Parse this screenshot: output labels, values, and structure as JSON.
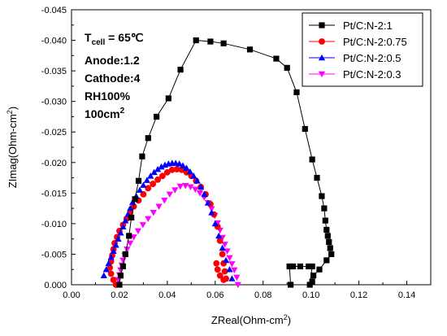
{
  "chart_data": {
    "type": "scatter",
    "xlabel": "ZReal(Ohm-cm",
    "xlabel_sup": "2",
    "xlabel_end": ")",
    "ylabel": "ZImag(Ohm-cm",
    "ylabel_sup": "2",
    "ylabel_end": ")",
    "xlim": [
      0.0,
      0.15
    ],
    "ylim": [
      0.0,
      -0.045
    ],
    "x_ticks": [
      "0.00",
      "0.02",
      "0.04",
      "0.06",
      "0.08",
      "0.10",
      "0.12",
      "0.14"
    ],
    "y_ticks": [
      "0.000",
      "-0.005",
      "-0.010",
      "-0.015",
      "-0.020",
      "-0.025",
      "-0.030",
      "-0.035",
      "-0.040",
      "-0.045"
    ],
    "grid": false,
    "legend_position": "top-right",
    "annotation": {
      "temp_prefix": "T",
      "temp_sub": "cell",
      "temp_value": " = 65℃",
      "anode": "Anode:1.2",
      "cathode": "Cathode:4",
      "rh": "RH100%",
      "area": "100cm",
      "area_sup": "2"
    },
    "series": [
      {
        "name": "Pt/C:N-2:1",
        "color": "#000000",
        "marker": "square",
        "line": true,
        "x": [
          0.0915,
          0.091,
          0.0925,
          0.0955,
          0.099,
          0.1005,
          0.0995,
          0.1005,
          0.101,
          0.1035,
          0.1065,
          0.1085,
          0.108,
          0.1075,
          0.107,
          0.1065,
          0.106,
          0.1055,
          0.1045,
          0.1025,
          0.1005,
          0.0975,
          0.094,
          0.09,
          0.0855,
          0.0745,
          0.0635,
          0.058,
          0.052,
          0.0455,
          0.0405,
          0.0355,
          0.032,
          0.0295,
          0.028,
          0.0265,
          0.025,
          0.024,
          0.0225,
          0.0215,
          0.0205,
          0.02
        ],
        "y": [
          0.0,
          -0.003,
          -0.003,
          -0.003,
          -0.003,
          -0.003,
          0.0,
          -0.0005,
          -0.0015,
          -0.0025,
          -0.004,
          -0.005,
          -0.006,
          -0.007,
          -0.008,
          -0.009,
          -0.0105,
          -0.0125,
          -0.0145,
          -0.0175,
          -0.0205,
          -0.0255,
          -0.0315,
          -0.0355,
          -0.037,
          -0.0385,
          -0.0395,
          -0.0398,
          -0.04,
          -0.0352,
          -0.0305,
          -0.0275,
          -0.024,
          -0.021,
          -0.017,
          -0.014,
          -0.011,
          -0.008,
          -0.005,
          -0.003,
          -0.0015,
          0.0
        ]
      },
      {
        "name": "Pt/C:N-2:0.75",
        "color": "#ff0000",
        "marker": "circle",
        "line": false,
        "x": [
          0.0185,
          0.0175,
          0.0165,
          0.016,
          0.0165,
          0.017,
          0.0175,
          0.018,
          0.019,
          0.02,
          0.0215,
          0.023,
          0.0245,
          0.026,
          0.028,
          0.03,
          0.032,
          0.034,
          0.036,
          0.038,
          0.04,
          0.042,
          0.044,
          0.046,
          0.048,
          0.05,
          0.052,
          0.054,
          0.056,
          0.058,
          0.0595,
          0.061,
          0.062,
          0.063,
          0.0635,
          0.064,
          0.0645,
          0.0635,
          0.062,
          0.061,
          0.0605
        ],
        "y": [
          0.0,
          -0.0008,
          -0.0018,
          -0.0028,
          -0.0038,
          -0.0048,
          -0.0058,
          -0.0068,
          -0.0078,
          -0.0088,
          -0.0098,
          -0.0108,
          -0.0118,
          -0.0128,
          -0.0138,
          -0.0148,
          -0.0158,
          -0.0165,
          -0.0172,
          -0.0178,
          -0.0184,
          -0.0188,
          -0.0189,
          -0.0188,
          -0.0184,
          -0.0178,
          -0.017,
          -0.016,
          -0.0148,
          -0.0132,
          -0.0115,
          -0.0095,
          -0.0072,
          -0.005,
          -0.0035,
          -0.0022,
          -0.001,
          -0.0008,
          -0.0015,
          -0.0025,
          -0.0035
        ]
      },
      {
        "name": "Pt/C:N-2:0.5",
        "color": "#0000ff",
        "marker": "triangle-up",
        "line": false,
        "x": [
          0.0135,
          0.0145,
          0.0155,
          0.0165,
          0.0175,
          0.0185,
          0.0195,
          0.0205,
          0.0215,
          0.0225,
          0.0235,
          0.0245,
          0.0255,
          0.027,
          0.0285,
          0.03,
          0.0315,
          0.033,
          0.0345,
          0.036,
          0.0375,
          0.039,
          0.0405,
          0.042,
          0.0435,
          0.045,
          0.0465,
          0.048,
          0.0495,
          0.051,
          0.0525,
          0.054,
          0.0555,
          0.057,
          0.0585,
          0.06,
          0.0615,
          0.063,
          0.0645,
          0.066,
          0.067
        ],
        "y": [
          -0.0015,
          -0.0025,
          -0.0035,
          -0.0045,
          -0.0055,
          -0.0065,
          -0.0075,
          -0.0085,
          -0.0095,
          -0.0105,
          -0.0115,
          -0.0125,
          -0.0135,
          -0.0145,
          -0.0155,
          -0.0163,
          -0.0171,
          -0.0178,
          -0.0184,
          -0.0189,
          -0.0193,
          -0.0196,
          -0.0198,
          -0.0199,
          -0.0199,
          -0.0198,
          -0.0195,
          -0.0191,
          -0.0185,
          -0.0178,
          -0.017,
          -0.016,
          -0.0148,
          -0.0134,
          -0.0118,
          -0.01,
          -0.008,
          -0.006,
          -0.004,
          -0.0025,
          -0.001
        ]
      },
      {
        "name": "Pt/C:N-2:0.3",
        "color": "#ff00ff",
        "marker": "triangle-down",
        "line": false,
        "x": [
          0.019,
          0.0195,
          0.02,
          0.0205,
          0.021,
          0.0215,
          0.0222,
          0.0232,
          0.0245,
          0.026,
          0.0278,
          0.0298,
          0.032,
          0.0342,
          0.0365,
          0.0388,
          0.041,
          0.0432,
          0.0454,
          0.0476,
          0.0497,
          0.0517,
          0.0536,
          0.0554,
          0.057,
          0.0585,
          0.0598,
          0.061,
          0.062,
          0.063,
          0.064,
          0.065,
          0.066,
          0.067,
          0.068,
          0.069,
          0.0695
        ],
        "y": [
          0.0,
          -0.0008,
          -0.0016,
          -0.0024,
          -0.0032,
          -0.004,
          -0.0048,
          -0.0058,
          -0.0068,
          -0.0078,
          -0.0088,
          -0.0098,
          -0.0108,
          -0.0118,
          -0.0128,
          -0.0138,
          -0.0148,
          -0.0155,
          -0.0161,
          -0.0162,
          -0.016,
          -0.0156,
          -0.015,
          -0.0143,
          -0.0134,
          -0.0124,
          -0.0113,
          -0.0101,
          -0.0089,
          -0.0077,
          -0.0066,
          -0.0055,
          -0.0044,
          -0.0034,
          -0.0024,
          -0.0012,
          0.0
        ]
      }
    ]
  }
}
